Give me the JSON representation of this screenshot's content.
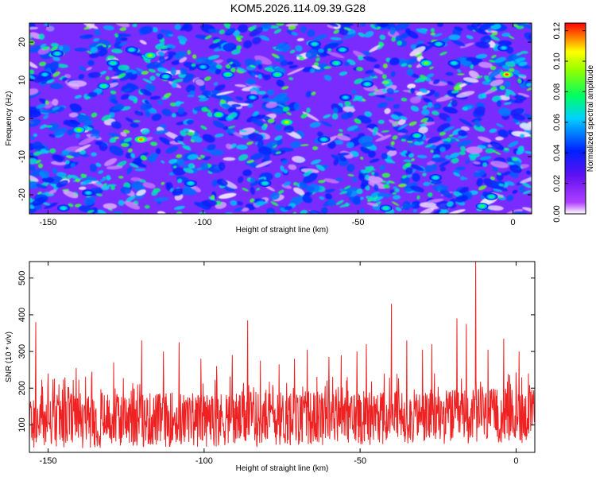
{
  "title": "KOM5.2026.114.09.39.G28",
  "chart_data": [
    {
      "type": "heatmap",
      "xlabel": "Height of straight line (km)",
      "ylabel": "Frequency (Hz)",
      "xlim": [
        -156,
        6
      ],
      "ylim": [
        -25,
        25
      ],
      "xticks": [
        -150,
        -100,
        -50,
        0
      ],
      "yticks": [
        -20,
        -10,
        0,
        10,
        20
      ],
      "xtick_labels": [
        "-150",
        "-100",
        "-50",
        "0"
      ],
      "ytick_labels": [
        "-20",
        "-10",
        "0",
        "10",
        "20"
      ],
      "colorbar": {
        "label": "Normalized spectral amplitude",
        "range": [
          0,
          0.125
        ],
        "ticks": [
          0,
          0.02,
          0.04,
          0.06,
          0.08,
          0.1,
          0.12
        ],
        "tick_labels": [
          "0.00",
          "0.02",
          "0.04",
          "0.06",
          "0.08",
          "0.10",
          "0.12"
        ],
        "colormap": [
          "#ffffff",
          "#a020f0",
          "#0000ff",
          "#00ffff",
          "#00ff00",
          "#ffff00",
          "#ff0000"
        ]
      },
      "background_color": "#7a2cff",
      "peaks": [
        {
          "x": -120,
          "y": -5.5,
          "v": 0.115
        },
        {
          "x": -2,
          "y": 11.5,
          "v": 0.12
        },
        {
          "x": -73,
          "y": -1,
          "v": 0.1
        },
        {
          "x": -117,
          "y": 16.5,
          "v": 0.095
        },
        {
          "x": -140,
          "y": -3,
          "v": 0.09
        },
        {
          "x": -28,
          "y": 14.5,
          "v": 0.09
        },
        {
          "x": -95,
          "y": 1,
          "v": 0.085
        },
        {
          "x": -92,
          "y": 11.5,
          "v": 0.08
        },
        {
          "x": -132,
          "y": 8.5,
          "v": 0.08
        },
        {
          "x": -76,
          "y": 11.5,
          "v": 0.08
        },
        {
          "x": -31,
          "y": -4.5,
          "v": 0.075
        },
        {
          "x": -10,
          "y": -23,
          "v": 0.08
        },
        {
          "x": -55,
          "y": 18,
          "v": 0.07
        },
        {
          "x": -147,
          "y": 17,
          "v": 0.07
        },
        {
          "x": -129,
          "y": 14.5,
          "v": 0.075
        },
        {
          "x": -57,
          "y": 14.5,
          "v": 0.075
        },
        {
          "x": -19,
          "y": 14.5,
          "v": 0.07
        },
        {
          "x": -64,
          "y": 19.5,
          "v": 0.07
        },
        {
          "x": -41,
          "y": -23.5,
          "v": 0.075
        },
        {
          "x": -47,
          "y": 9,
          "v": 0.07
        },
        {
          "x": -104,
          "y": -17,
          "v": 0.07
        },
        {
          "x": -61,
          "y": -5.5,
          "v": 0.07
        },
        {
          "x": -80,
          "y": -17,
          "v": 0.07
        },
        {
          "x": -123,
          "y": 18,
          "v": 0.07
        },
        {
          "x": -7,
          "y": -20.5,
          "v": 0.075
        },
        {
          "x": -145,
          "y": -23.5,
          "v": 0.07
        },
        {
          "x": -25,
          "y": -15.5,
          "v": 0.07
        },
        {
          "x": -112,
          "y": 11,
          "v": 0.07
        },
        {
          "x": -54,
          "y": 5.5,
          "v": 0.065
        },
        {
          "x": -24,
          "y": 19.5,
          "v": 0.07
        },
        {
          "x": -151,
          "y": 11.5,
          "v": 0.065
        },
        {
          "x": -100,
          "y": 13.5,
          "v": 0.065
        },
        {
          "x": -3,
          "y": 18.5,
          "v": 0.065
        },
        {
          "x": -137,
          "y": -19.5,
          "v": 0.065
        },
        {
          "x": -84,
          "y": 5.5,
          "v": 0.065
        }
      ]
    },
    {
      "type": "line",
      "xlabel": "Height of straight line (km)",
      "ylabel": "SNR (10 * v/v)",
      "xlim": [
        -156,
        6
      ],
      "ylim": [
        25,
        545
      ],
      "xticks": [
        -150,
        -100,
        -50,
        0
      ],
      "yticks": [
        100,
        200,
        300,
        400,
        500
      ],
      "xtick_labels": [
        "-150",
        "-100",
        "-50",
        "0"
      ],
      "ytick_labels": [
        "100",
        "200",
        "300",
        "400",
        "500"
      ],
      "series_color": "#ee2222",
      "noise_sample_step_km": 0.12,
      "noise_range": [
        25,
        200
      ],
      "spikes": [
        {
          "x": -154,
          "y": 380
        },
        {
          "x": -150,
          "y": 240
        },
        {
          "x": -141,
          "y": 255
        },
        {
          "x": -136,
          "y": 245
        },
        {
          "x": -129,
          "y": 270
        },
        {
          "x": -120,
          "y": 330
        },
        {
          "x": -113,
          "y": 300
        },
        {
          "x": -108,
          "y": 325
        },
        {
          "x": -101,
          "y": 280
        },
        {
          "x": -96,
          "y": 260
        },
        {
          "x": -91,
          "y": 290
        },
        {
          "x": -86,
          "y": 385
        },
        {
          "x": -82,
          "y": 275
        },
        {
          "x": -76,
          "y": 265
        },
        {
          "x": -71,
          "y": 280
        },
        {
          "x": -67,
          "y": 305
        },
        {
          "x": -60,
          "y": 285
        },
        {
          "x": -56,
          "y": 290
        },
        {
          "x": -51,
          "y": 300
        },
        {
          "x": -48,
          "y": 320
        },
        {
          "x": -40,
          "y": 430
        },
        {
          "x": -35,
          "y": 330
        },
        {
          "x": -30,
          "y": 305
        },
        {
          "x": -27,
          "y": 320
        },
        {
          "x": -19,
          "y": 390
        },
        {
          "x": -16,
          "y": 375
        },
        {
          "x": -13,
          "y": 545
        },
        {
          "x": -9,
          "y": 305
        },
        {
          "x": -4,
          "y": 335
        },
        {
          "x": 1,
          "y": 300
        },
        {
          "x": 4,
          "y": 240
        }
      ]
    }
  ]
}
